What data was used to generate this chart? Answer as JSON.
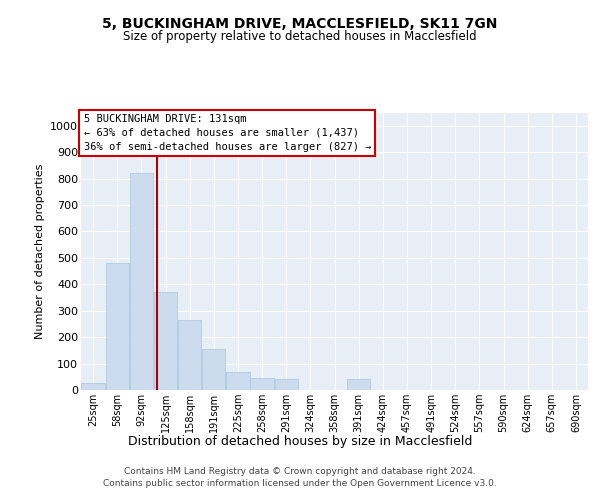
{
  "title": "5, BUCKINGHAM DRIVE, MACCLESFIELD, SK11 7GN",
  "subtitle": "Size of property relative to detached houses in Macclesfield",
  "xlabel": "Distribution of detached houses by size in Macclesfield",
  "ylabel": "Number of detached properties",
  "categories": [
    "25sqm",
    "58sqm",
    "92sqm",
    "125sqm",
    "158sqm",
    "191sqm",
    "225sqm",
    "258sqm",
    "291sqm",
    "324sqm",
    "358sqm",
    "391sqm",
    "424sqm",
    "457sqm",
    "491sqm",
    "524sqm",
    "557sqm",
    "590sqm",
    "624sqm",
    "657sqm",
    "690sqm"
  ],
  "values": [
    25,
    480,
    820,
    370,
    265,
    155,
    70,
    45,
    40,
    0,
    0,
    40,
    0,
    0,
    0,
    0,
    0,
    0,
    0,
    0,
    0
  ],
  "bar_color": "#ccdcee",
  "bar_edge_color": "#a8c4dd",
  "annotation_title": "5 BUCKINGHAM DRIVE: 131sqm",
  "annotation_line1": "← 63% of detached houses are smaller (1,437)",
  "annotation_line2": "36% of semi-detached houses are larger (827) →",
  "line_color": "#aa0000",
  "ylim": [
    0,
    1050
  ],
  "yticks": [
    0,
    100,
    200,
    300,
    400,
    500,
    600,
    700,
    800,
    900,
    1000
  ],
  "background_color": "#e8eef6",
  "grid_color": "#ffffff",
  "footer_line1": "Contains HM Land Registry data © Crown copyright and database right 2024.",
  "footer_line2": "Contains public sector information licensed under the Open Government Licence v3.0.",
  "property_bar_index": 2.65
}
